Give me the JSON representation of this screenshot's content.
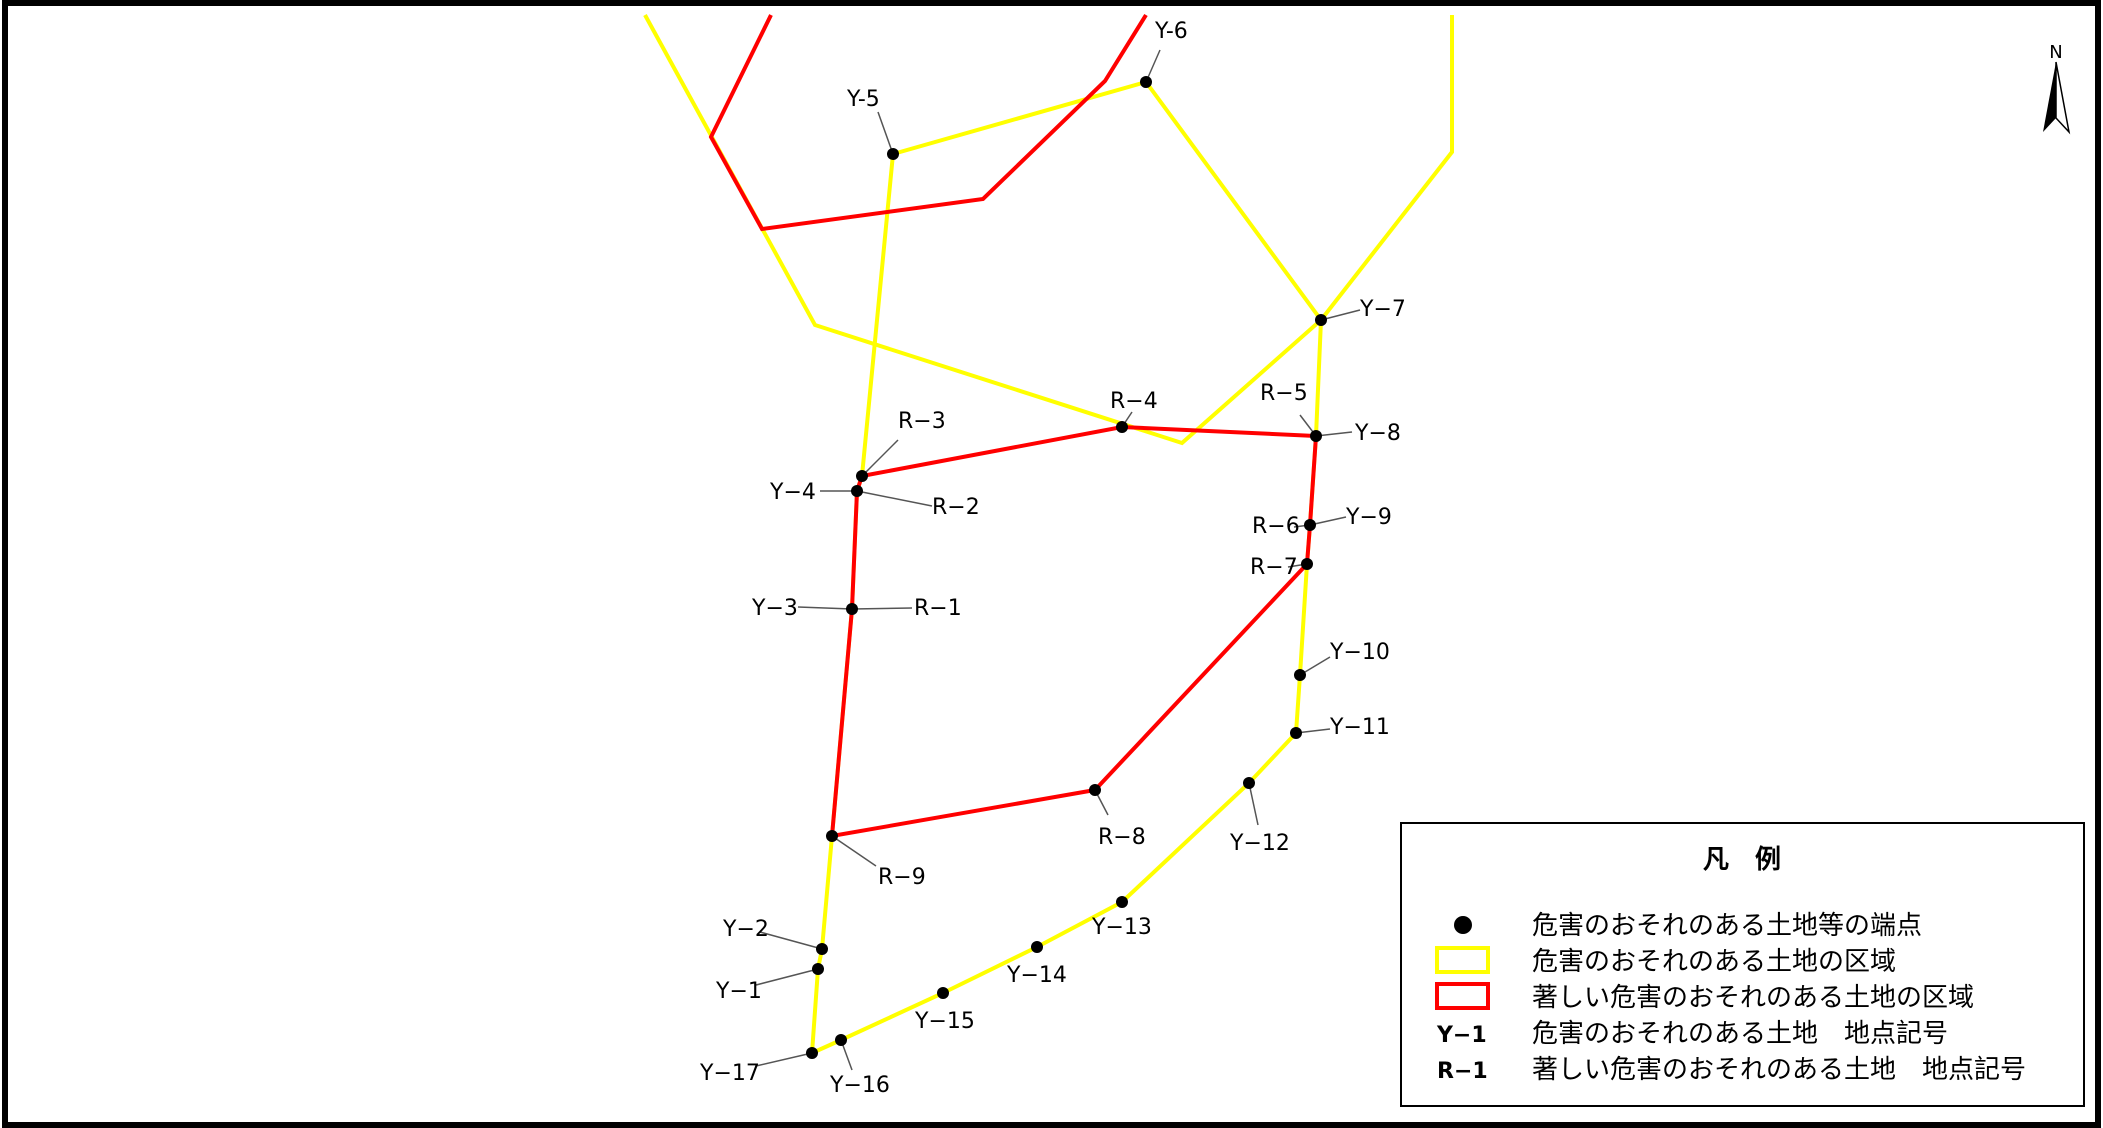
{
  "north_label": "N",
  "colors": {
    "hazard_area": "#ffff00",
    "severe_area": "#ff0000",
    "point": "#000000",
    "frame": "#000000"
  },
  "legend": {
    "title": "凡　例",
    "items": [
      {
        "symbol": "point",
        "text": "危害のおそれのある土地等の端点"
      },
      {
        "symbol": "yellow-box",
        "text": "危害のおそれのある土地の区域"
      },
      {
        "symbol": "red-box",
        "text": "著しい危害のおそれのある土地の区域"
      },
      {
        "symbol": "Y−1",
        "text": "危害のおそれのある土地　地点記号"
      },
      {
        "symbol": "R−1",
        "text": "著しい危害のおそれのある土地　地点記号"
      }
    ]
  },
  "points": [
    {
      "id": "y6",
      "label": "Y-6"
    },
    {
      "id": "y5",
      "label": "Y-5"
    },
    {
      "id": "y7",
      "label": "Y−7"
    },
    {
      "id": "r4",
      "label": "R−4"
    },
    {
      "id": "r5",
      "label": "R−5"
    },
    {
      "id": "y8",
      "label": "Y−8"
    },
    {
      "id": "r3",
      "label": "R−3"
    },
    {
      "id": "y4",
      "label": "Y−4"
    },
    {
      "id": "r2",
      "label": "R−2"
    },
    {
      "id": "r6",
      "label": "R−6"
    },
    {
      "id": "y9",
      "label": "Y−9"
    },
    {
      "id": "r7",
      "label": "R−7"
    },
    {
      "id": "y3",
      "label": "Y−3"
    },
    {
      "id": "r1",
      "label": "R−1"
    },
    {
      "id": "y10",
      "label": "Y−10"
    },
    {
      "id": "y11",
      "label": "Y−11"
    },
    {
      "id": "y12",
      "label": "Y−12"
    },
    {
      "id": "r8",
      "label": "R−8"
    },
    {
      "id": "r9",
      "label": "R−9"
    },
    {
      "id": "y13",
      "label": "Y−13"
    },
    {
      "id": "y2",
      "label": "Y−2"
    },
    {
      "id": "y14",
      "label": "Y−14"
    },
    {
      "id": "y1",
      "label": "Y−1"
    },
    {
      "id": "y15",
      "label": "Y−15"
    },
    {
      "id": "y17",
      "label": "Y−17"
    },
    {
      "id": "y16",
      "label": "Y−16"
    }
  ]
}
